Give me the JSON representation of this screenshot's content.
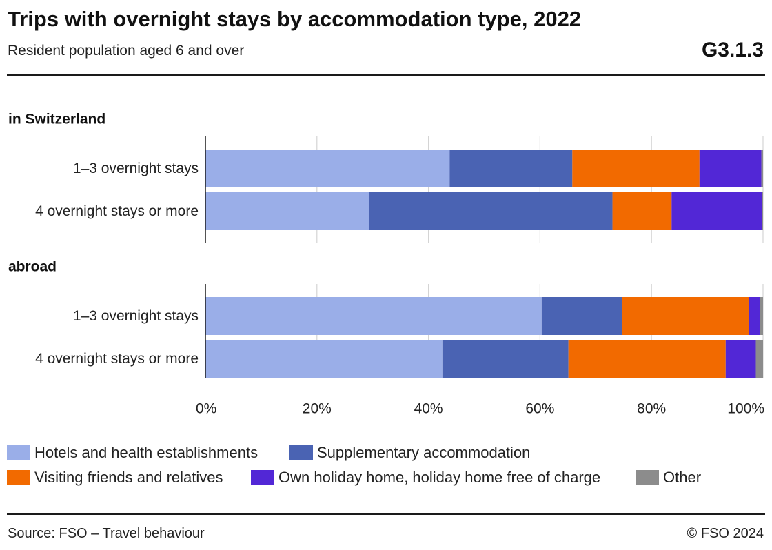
{
  "header": {
    "title": "Trips with overnight stays by accommodation type, 2022",
    "subtitle": "Resident population aged 6 and over",
    "code": "G3.1.3"
  },
  "footer": {
    "source": "Source: FSO – Travel behaviour",
    "copyright": "© FSO 2024"
  },
  "chart_data": {
    "type": "bar",
    "orientation": "horizontal",
    "stacked": "percent",
    "xlim": [
      0,
      100
    ],
    "x_ticks": [
      "0%",
      "20%",
      "40%",
      "60%",
      "80%",
      "100%"
    ],
    "grid": true,
    "legend_position": "bottom",
    "groups": [
      {
        "label": "in Switzerland",
        "categories": [
          "1–3 overnight stays",
          "4 overnight stays or more"
        ]
      },
      {
        "label": "abroad",
        "categories": [
          "1–3 overnight stays",
          "4 overnight stays or more"
        ]
      }
    ],
    "series": [
      {
        "name": "Hotels and health establishments",
        "color": "#9aaee8",
        "values": [
          43.8,
          29.4,
          60.3,
          42.5
        ]
      },
      {
        "name": "Supplementary accommodation",
        "color": "#4a63b3",
        "values": [
          22.0,
          43.6,
          14.4,
          22.6
        ]
      },
      {
        "name": "Visiting friends and relatives",
        "color": "#f26a00",
        "values": [
          22.8,
          10.6,
          22.8,
          28.2
        ]
      },
      {
        "name": "Own holiday home, holiday home free of charge",
        "color": "#5227d6",
        "values": [
          11.1,
          16.2,
          2.0,
          5.4
        ]
      },
      {
        "name": "Other",
        "color": "#8c8c8c",
        "values": [
          0.3,
          0.2,
          0.5,
          1.3
        ]
      }
    ]
  }
}
